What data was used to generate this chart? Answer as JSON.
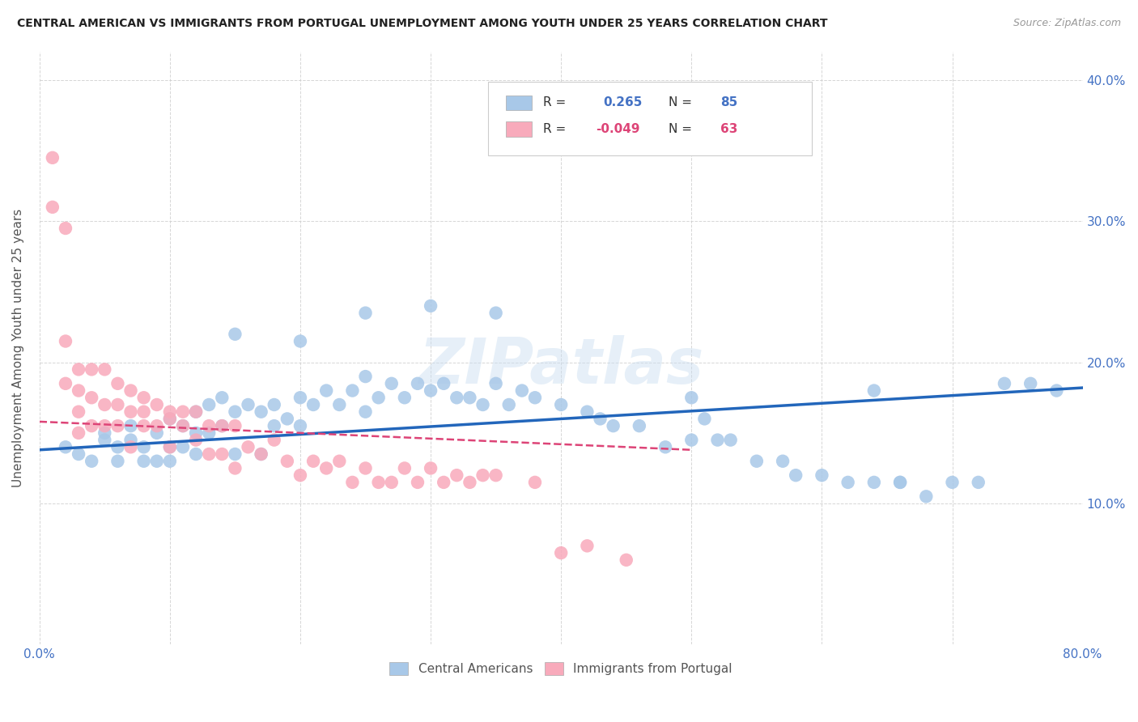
{
  "title": "CENTRAL AMERICAN VS IMMIGRANTS FROM PORTUGAL UNEMPLOYMENT AMONG YOUTH UNDER 25 YEARS CORRELATION CHART",
  "source": "Source: ZipAtlas.com",
  "ylabel": "Unemployment Among Youth under 25 years",
  "xlim": [
    0.0,
    0.8
  ],
  "ylim": [
    0.0,
    0.42
  ],
  "blue_R": 0.265,
  "blue_N": 85,
  "pink_R": -0.049,
  "pink_N": 63,
  "blue_color": "#a8c8e8",
  "blue_line_color": "#2266bb",
  "pink_color": "#f8aabb",
  "pink_line_color": "#dd4477",
  "watermark": "ZIPatlas",
  "legend_label_blue": "Central Americans",
  "legend_label_pink": "Immigrants from Portugal",
  "blue_line_x0": 0.0,
  "blue_line_y0": 0.138,
  "blue_line_x1": 0.8,
  "blue_line_y1": 0.182,
  "pink_line_x0": 0.0,
  "pink_line_y0": 0.158,
  "pink_line_x1": 0.5,
  "pink_line_y1": 0.138,
  "blue_scatter_x": [
    0.02,
    0.03,
    0.04,
    0.05,
    0.05,
    0.06,
    0.06,
    0.07,
    0.07,
    0.08,
    0.08,
    0.09,
    0.09,
    0.1,
    0.1,
    0.1,
    0.11,
    0.11,
    0.12,
    0.12,
    0.12,
    0.13,
    0.13,
    0.14,
    0.14,
    0.15,
    0.15,
    0.16,
    0.17,
    0.17,
    0.18,
    0.18,
    0.19,
    0.2,
    0.2,
    0.21,
    0.22,
    0.23,
    0.24,
    0.25,
    0.25,
    0.26,
    0.27,
    0.28,
    0.29,
    0.3,
    0.31,
    0.32,
    0.33,
    0.34,
    0.35,
    0.36,
    0.37,
    0.38,
    0.4,
    0.42,
    0.43,
    0.44,
    0.46,
    0.48,
    0.5,
    0.5,
    0.51,
    0.52,
    0.53,
    0.55,
    0.57,
    0.58,
    0.6,
    0.62,
    0.64,
    0.66,
    0.68,
    0.7,
    0.72,
    0.74,
    0.76,
    0.78,
    0.64,
    0.66,
    0.15,
    0.2,
    0.25,
    0.3,
    0.35
  ],
  "blue_scatter_y": [
    0.14,
    0.135,
    0.13,
    0.145,
    0.15,
    0.14,
    0.13,
    0.145,
    0.155,
    0.14,
    0.13,
    0.15,
    0.13,
    0.16,
    0.14,
    0.13,
    0.155,
    0.14,
    0.165,
    0.15,
    0.135,
    0.17,
    0.15,
    0.175,
    0.155,
    0.165,
    0.135,
    0.17,
    0.165,
    0.135,
    0.17,
    0.155,
    0.16,
    0.175,
    0.155,
    0.17,
    0.18,
    0.17,
    0.18,
    0.19,
    0.165,
    0.175,
    0.185,
    0.175,
    0.185,
    0.18,
    0.185,
    0.175,
    0.175,
    0.17,
    0.185,
    0.17,
    0.18,
    0.175,
    0.17,
    0.165,
    0.16,
    0.155,
    0.155,
    0.14,
    0.145,
    0.175,
    0.16,
    0.145,
    0.145,
    0.13,
    0.13,
    0.12,
    0.12,
    0.115,
    0.115,
    0.115,
    0.105,
    0.115,
    0.115,
    0.185,
    0.185,
    0.18,
    0.18,
    0.115,
    0.22,
    0.215,
    0.235,
    0.24,
    0.235
  ],
  "pink_scatter_x": [
    0.01,
    0.01,
    0.02,
    0.02,
    0.02,
    0.03,
    0.03,
    0.03,
    0.03,
    0.04,
    0.04,
    0.04,
    0.05,
    0.05,
    0.05,
    0.06,
    0.06,
    0.06,
    0.07,
    0.07,
    0.07,
    0.08,
    0.08,
    0.08,
    0.09,
    0.09,
    0.1,
    0.1,
    0.1,
    0.11,
    0.11,
    0.12,
    0.12,
    0.13,
    0.13,
    0.14,
    0.14,
    0.15,
    0.15,
    0.16,
    0.17,
    0.18,
    0.19,
    0.2,
    0.21,
    0.22,
    0.23,
    0.24,
    0.25,
    0.26,
    0.27,
    0.28,
    0.29,
    0.3,
    0.31,
    0.32,
    0.33,
    0.34,
    0.35,
    0.38,
    0.4,
    0.42,
    0.45
  ],
  "pink_scatter_y": [
    0.345,
    0.31,
    0.295,
    0.215,
    0.185,
    0.195,
    0.18,
    0.165,
    0.15,
    0.195,
    0.175,
    0.155,
    0.195,
    0.17,
    0.155,
    0.185,
    0.17,
    0.155,
    0.18,
    0.165,
    0.14,
    0.175,
    0.165,
    0.155,
    0.17,
    0.155,
    0.165,
    0.16,
    0.14,
    0.165,
    0.155,
    0.165,
    0.145,
    0.155,
    0.135,
    0.155,
    0.135,
    0.155,
    0.125,
    0.14,
    0.135,
    0.145,
    0.13,
    0.12,
    0.13,
    0.125,
    0.13,
    0.115,
    0.125,
    0.115,
    0.115,
    0.125,
    0.115,
    0.125,
    0.115,
    0.12,
    0.115,
    0.12,
    0.12,
    0.115,
    0.065,
    0.07,
    0.06
  ]
}
